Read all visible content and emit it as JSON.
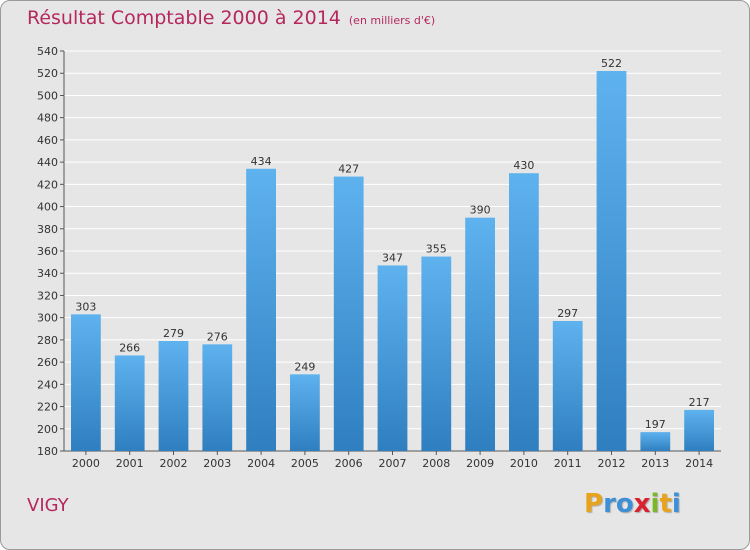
{
  "title": "Résultat Comptable 2000 à 2014",
  "subtitle": "(en milliers d'€)",
  "place": "VIGY",
  "logo": {
    "text": "Proxiti",
    "letters": [
      "P",
      "r",
      "o",
      "x",
      "i",
      "t",
      "i"
    ],
    "colors": [
      "#e8a31c",
      "#3d8fd6",
      "#3d8fd6",
      "#d8222f",
      "#79b829",
      "#e8a31c",
      "#3d8fd6"
    ]
  },
  "colors": {
    "title": "#b5285e",
    "bar_top": "#5eb2ee",
    "bar_bottom": "#2f7fc0",
    "grid": "#ffffff",
    "background": "#e6e6e6"
  },
  "chart_data": {
    "type": "bar",
    "title": "Résultat Comptable 2000 à 2014",
    "subtitle": "(en milliers d'€)",
    "xlabel": "",
    "ylabel": "",
    "categories": [
      "2000",
      "2001",
      "2002",
      "2003",
      "2004",
      "2005",
      "2006",
      "2007",
      "2008",
      "2009",
      "2010",
      "2011",
      "2012",
      "2013",
      "2014"
    ],
    "values": [
      303,
      266,
      279,
      276,
      434,
      249,
      427,
      347,
      355,
      390,
      430,
      297,
      522,
      197,
      217
    ],
    "ylim": [
      180,
      540
    ],
    "yticks": [
      180,
      200,
      220,
      240,
      260,
      280,
      300,
      320,
      340,
      360,
      380,
      400,
      420,
      440,
      460,
      480,
      500,
      520,
      540
    ],
    "grid": true,
    "data_labels": true
  }
}
